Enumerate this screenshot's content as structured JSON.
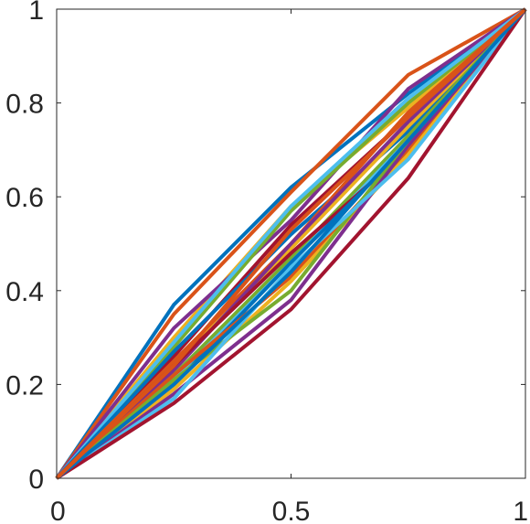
{
  "chart_data": {
    "type": "line",
    "title": "",
    "xlabel": "",
    "ylabel": "",
    "xlim": [
      0,
      1
    ],
    "ylim": [
      0,
      1
    ],
    "grid": false,
    "legend": "none",
    "x": [
      0,
      0.25,
      0.5,
      0.75,
      1
    ],
    "x_ticks": [
      0,
      0.5,
      1
    ],
    "x_tick_labels": [
      "0",
      "0.5",
      "1"
    ],
    "y_ticks": [
      0,
      0.2,
      0.4,
      0.6,
      0.8,
      1
    ],
    "y_tick_labels": [
      "0",
      "0.2",
      "0.4",
      "0.6",
      "0.8",
      "1"
    ],
    "series": [
      {
        "color": "#0072BD",
        "values": [
          0,
          0.37,
          0.62,
          0.82,
          1
        ]
      },
      {
        "color": "#D95319",
        "values": [
          0,
          0.35,
          0.61,
          0.86,
          1
        ]
      },
      {
        "color": "#EDB120",
        "values": [
          0,
          0.3,
          0.58,
          0.79,
          1
        ]
      },
      {
        "color": "#7E2F8E",
        "values": [
          0,
          0.32,
          0.55,
          0.83,
          1
        ]
      },
      {
        "color": "#77AC30",
        "values": [
          0,
          0.28,
          0.57,
          0.8,
          1
        ]
      },
      {
        "color": "#4DBEEE",
        "values": [
          0,
          0.29,
          0.58,
          0.81,
          1
        ]
      },
      {
        "color": "#A2142F",
        "values": [
          0,
          0.26,
          0.54,
          0.77,
          1
        ]
      },
      {
        "color": "#0072BD",
        "values": [
          0,
          0.27,
          0.52,
          0.74,
          1
        ]
      },
      {
        "color": "#D95319",
        "values": [
          0,
          0.25,
          0.5,
          0.78,
          1
        ]
      },
      {
        "color": "#EDB120",
        "values": [
          0,
          0.24,
          0.49,
          0.75,
          1
        ]
      },
      {
        "color": "#7E2F8E",
        "values": [
          0,
          0.23,
          0.5,
          0.76,
          1
        ]
      },
      {
        "color": "#77AC30",
        "values": [
          0,
          0.22,
          0.47,
          0.73,
          1
        ]
      },
      {
        "color": "#4DBEEE",
        "values": [
          0,
          0.21,
          0.46,
          0.72,
          1
        ]
      },
      {
        "color": "#A2142F",
        "values": [
          0,
          0.24,
          0.48,
          0.7,
          1
        ]
      },
      {
        "color": "#0072BD",
        "values": [
          0,
          0.2,
          0.46,
          0.71,
          1
        ]
      },
      {
        "color": "#D95319",
        "values": [
          0,
          0.22,
          0.43,
          0.7,
          1
        ]
      },
      {
        "color": "#EDB120",
        "values": [
          0,
          0.19,
          0.42,
          0.69,
          1
        ]
      },
      {
        "color": "#7E2F8E",
        "values": [
          0,
          0.18,
          0.38,
          0.71,
          1
        ]
      },
      {
        "color": "#77AC30",
        "values": [
          0,
          0.21,
          0.4,
          0.72,
          1
        ]
      },
      {
        "color": "#4DBEEE",
        "values": [
          0,
          0.17,
          0.45,
          0.68,
          1
        ]
      },
      {
        "color": "#A2142F",
        "values": [
          0,
          0.16,
          0.36,
          0.64,
          1
        ]
      },
      {
        "color": "#0072BD",
        "values": [
          0,
          0.2,
          0.44,
          0.72,
          1
        ]
      },
      {
        "color": "#D95319",
        "values": [
          0,
          0.24,
          0.53,
          0.77,
          1
        ]
      }
    ]
  }
}
